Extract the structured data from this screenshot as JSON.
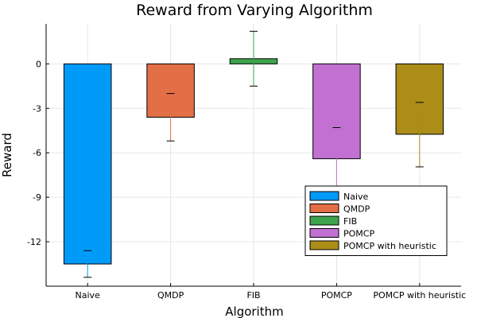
{
  "chart_data": {
    "type": "bar",
    "title": "Reward from Varying Algorithm",
    "xlabel": "Algorithm",
    "ylabel": "Reward",
    "ylim": [
      -15,
      2.7
    ],
    "yticks": [
      0,
      -3,
      -6,
      -9,
      -12
    ],
    "categories": [
      "Naive",
      "QMDP",
      "FIB",
      "POMCP",
      "POMCP with heuristic"
    ],
    "series": [
      {
        "name": "Naive",
        "color": "#009af9",
        "value": -13.5,
        "mean": -12.6,
        "err_low": -14.4,
        "err_high": -12.6
      },
      {
        "name": "QMDP",
        "color": "#e26f46",
        "value": -3.6,
        "mean": -2.0,
        "err_low": -5.2,
        "err_high": -2.0
      },
      {
        "name": "FIB",
        "color": "#3da44d",
        "value": 0.35,
        "mean": 0.35,
        "err_low": -1.5,
        "err_high": 2.2
      },
      {
        "name": "POMCP",
        "color": "#c271d2",
        "value": -6.4,
        "mean": -4.3,
        "err_low": -8.5,
        "err_high": -4.3
      },
      {
        "name": "POMCP with heuristic",
        "color": "#ac8d18",
        "value": -4.75,
        "mean": -2.6,
        "err_low": -6.95,
        "err_high": -2.6
      }
    ],
    "grid": true,
    "legend_position": "bottom-right"
  }
}
